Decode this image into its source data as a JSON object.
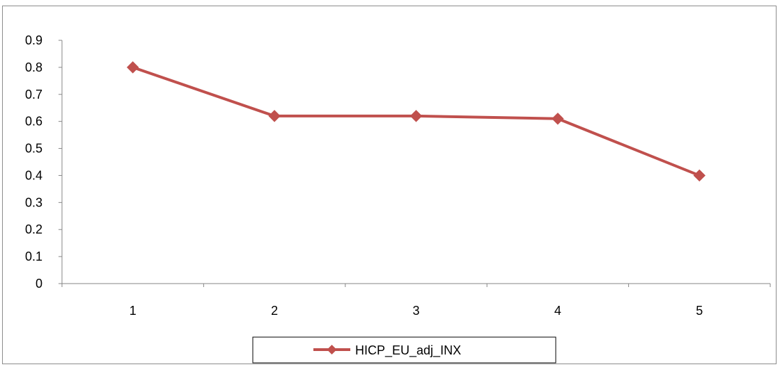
{
  "chart_data": {
    "type": "line",
    "categories": [
      "1",
      "2",
      "3",
      "4",
      "5"
    ],
    "series": [
      {
        "name": "HICP_EU_adj_INX",
        "values": [
          0.8,
          0.62,
          0.62,
          0.61,
          0.4
        ],
        "color": "#c0504d",
        "marker": "diamond"
      }
    ],
    "y_ticks": [
      "0",
      "0.1",
      "0.2",
      "0.3",
      "0.4",
      "0.5",
      "0.6",
      "0.7",
      "0.8",
      "0.9"
    ],
    "ylim": [
      0,
      0.9
    ],
    "grid": false,
    "legend_position": "bottom"
  }
}
